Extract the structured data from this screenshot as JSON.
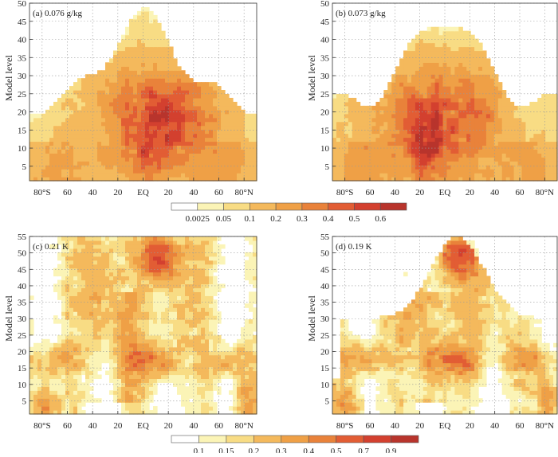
{
  "chart_data": [
    {
      "type": "heatmap",
      "panel": "a",
      "title": "(a) 0.076 g/kg",
      "ylabel": "Model  level",
      "ylim": [
        1,
        50
      ],
      "yticks": [
        5,
        10,
        15,
        20,
        25,
        30,
        35,
        40,
        45,
        50
      ],
      "xticks": [
        "80°S",
        "60",
        "40",
        "20",
        "EQ",
        "20",
        "40",
        "60",
        "80°N"
      ],
      "colorbar": "moisture",
      "field": "a",
      "grid": true
    },
    {
      "type": "heatmap",
      "panel": "b",
      "title": "(b) 0.073 g/kg",
      "ylabel": "Model  level",
      "ylim": [
        1,
        50
      ],
      "yticks": [
        5,
        10,
        15,
        20,
        25,
        30,
        35,
        40,
        45,
        50
      ],
      "xticks": [
        "80°S",
        "60",
        "40",
        "20",
        "EQ",
        "20",
        "40",
        "60",
        "80°N"
      ],
      "colorbar": "moisture",
      "field": "b",
      "grid": true
    },
    {
      "type": "heatmap",
      "panel": "c",
      "title": "(c) 0.21 K",
      "ylabel": "Model  level",
      "ylim": [
        1,
        55
      ],
      "yticks": [
        5,
        10,
        15,
        20,
        25,
        30,
        35,
        40,
        45,
        50,
        55
      ],
      "xticks": [
        "80°S",
        "60",
        "40",
        "20",
        "EQ",
        "20",
        "40",
        "60",
        "80°N"
      ],
      "colorbar": "temperature",
      "field": "c",
      "grid": true
    },
    {
      "type": "heatmap",
      "panel": "d",
      "title": "(d) 0.19 K",
      "ylabel": "Model  level",
      "ylim": [
        1,
        55
      ],
      "yticks": [
        5,
        10,
        15,
        20,
        25,
        30,
        35,
        40,
        45,
        50,
        55
      ],
      "xticks": [
        "80°S",
        "60",
        "40",
        "20",
        "EQ",
        "20",
        "40",
        "60",
        "80°N"
      ],
      "colorbar": "temperature",
      "field": "d",
      "grid": true
    }
  ],
  "colorbars": {
    "moisture": {
      "labels": [
        "0.0025",
        "0.05",
        "0.1",
        "0.2",
        "0.3",
        "0.4",
        "0.5",
        "0.6"
      ],
      "colors": [
        "#ffffff",
        "#fbf4b6",
        "#f8dc84",
        "#f4b95c",
        "#efa046",
        "#e9823a",
        "#e25d34",
        "#d3402f",
        "#b8342c"
      ]
    },
    "temperature": {
      "labels": [
        "0.1",
        "0.15",
        "0.2",
        "0.3",
        "0.4",
        "0.5",
        "0.7",
        "0.9"
      ],
      "colors": [
        "#ffffff",
        "#fbf4b6",
        "#f8dc84",
        "#f4b95c",
        "#efa046",
        "#e9823a",
        "#e25d34",
        "#d3402f",
        "#b8342c"
      ]
    }
  }
}
